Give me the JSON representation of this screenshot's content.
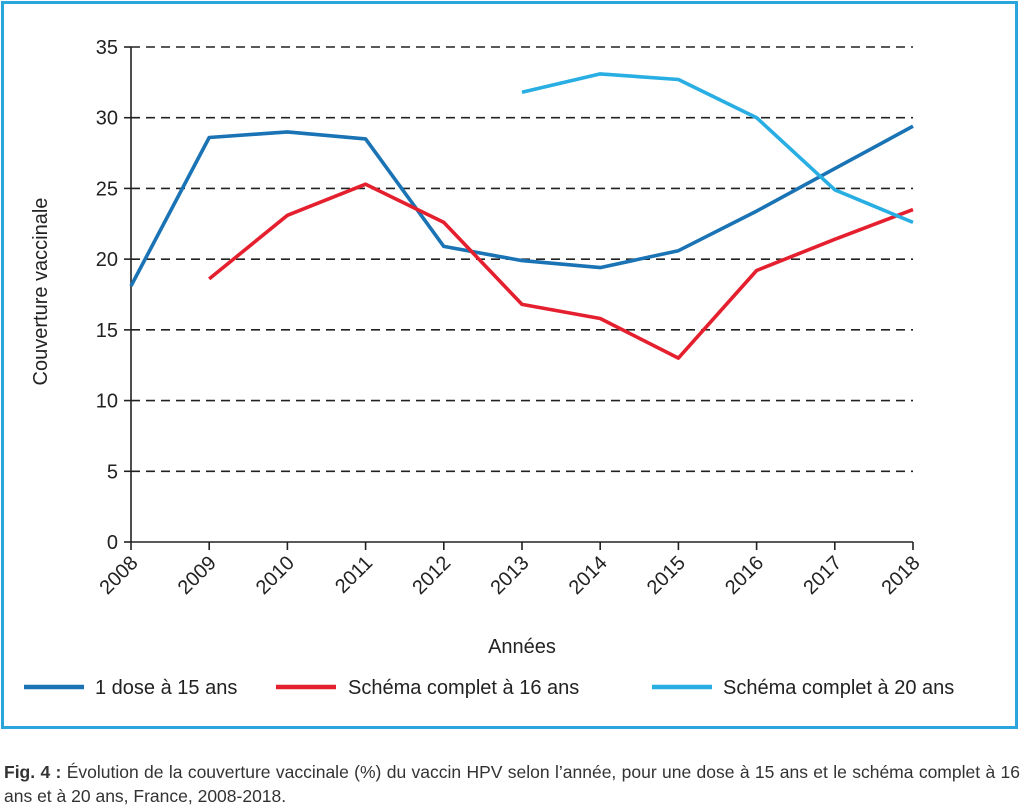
{
  "chart_data": {
    "type": "line",
    "xlabel": "Années",
    "ylabel": "Couverture vaccinale",
    "x": [
      "2008",
      "2009",
      "2010",
      "2011",
      "2012",
      "2013",
      "2014",
      "2015",
      "2016",
      "2017",
      "2018"
    ],
    "yticks": [
      "0",
      "5",
      "10",
      "15",
      "20",
      "25",
      "30",
      "35"
    ],
    "ylim": [
      0,
      35
    ],
    "grid": "dashed horizontal",
    "legend_position": "bottom",
    "series": [
      {
        "name": "1 dose à 15 ans",
        "color": "#1a73b4",
        "values": [
          18.1,
          28.6,
          29.0,
          28.5,
          20.9,
          19.9,
          19.4,
          20.6,
          23.4,
          26.4,
          29.4
        ]
      },
      {
        "name": "Schéma complet à 16 ans",
        "color": "#e5202e",
        "values": [
          null,
          18.6,
          23.1,
          25.3,
          22.6,
          16.8,
          15.8,
          13.0,
          19.2,
          21.4,
          23.5
        ]
      },
      {
        "name": "Schéma complet à 20 ans",
        "color": "#29aee3",
        "values": [
          null,
          null,
          null,
          null,
          null,
          31.8,
          33.1,
          32.7,
          30.0,
          24.9,
          22.6
        ]
      }
    ]
  },
  "caption": {
    "label": "Fig. 4 :",
    "text": " Évolution de la couverture vaccinale (%) du vaccin HPV selon l’année, pour une dose à 15 ans et le schéma complet à 16 ans et à 20 ans, France, 2008-2018."
  }
}
